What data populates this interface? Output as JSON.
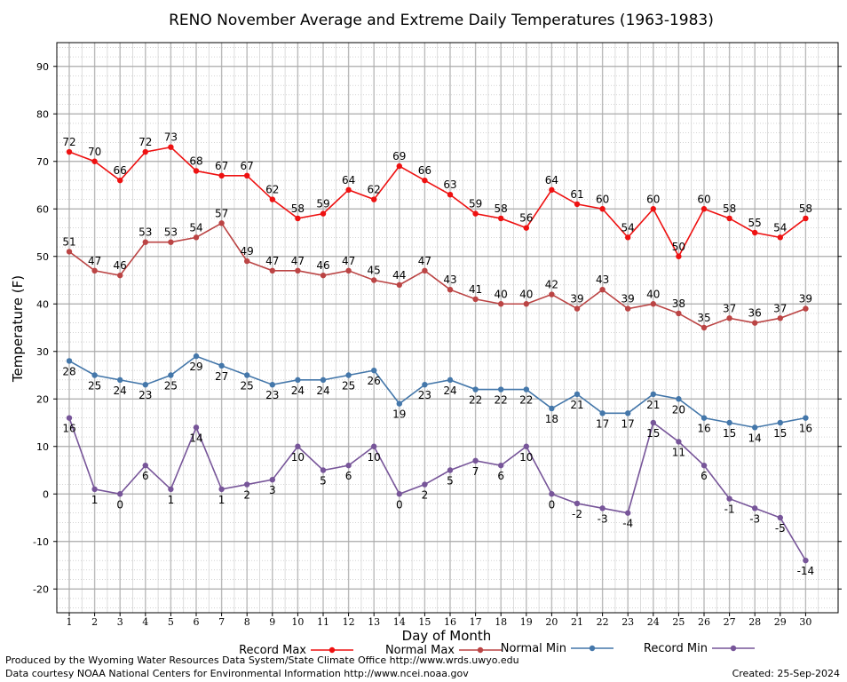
{
  "chart_data": {
    "type": "line",
    "title": "RENO November Average and Extreme Daily Temperatures (1963-1983)",
    "xlabel": "Day of Month",
    "ylabel": "Temperature (F)",
    "xlim": [
      1,
      30
    ],
    "ylim": [
      -25,
      95
    ],
    "yticks": [
      -20,
      -10,
      0,
      10,
      20,
      30,
      40,
      50,
      60,
      70,
      80,
      90
    ],
    "x": [
      1,
      2,
      3,
      4,
      5,
      6,
      7,
      8,
      9,
      10,
      11,
      12,
      13,
      14,
      15,
      16,
      17,
      18,
      19,
      20,
      21,
      22,
      23,
      24,
      25,
      26,
      27,
      28,
      29,
      30
    ],
    "grid": true,
    "legend_position": "bottom",
    "series": [
      {
        "name": "Record Max",
        "color": "#ee1111",
        "label_position": "above",
        "values": [
          72,
          70,
          66,
          72,
          73,
          68,
          67,
          67,
          62,
          58,
          59,
          64,
          62,
          69,
          66,
          63,
          59,
          58,
          56,
          64,
          61,
          60,
          54,
          60,
          50,
          60,
          58,
          55,
          54,
          58
        ]
      },
      {
        "name": "Normal Max",
        "color": "#bb4444",
        "label_position": "above",
        "values": [
          51,
          47,
          46,
          53,
          53,
          54,
          57,
          49,
          47,
          47,
          46,
          47,
          45,
          44,
          47,
          43,
          41,
          40,
          40,
          42,
          39,
          43,
          39,
          40,
          38,
          35,
          37,
          36,
          37,
          39
        ]
      },
      {
        "name": "Normal Min",
        "color": "#4477aa",
        "label_position": "below",
        "values": [
          28,
          25,
          24,
          23,
          25,
          29,
          27,
          25,
          23,
          24,
          24,
          25,
          26,
          19,
          23,
          24,
          22,
          22,
          22,
          18,
          21,
          17,
          17,
          21,
          20,
          16,
          15,
          14,
          15,
          16
        ]
      },
      {
        "name": "Record Min",
        "color": "#775599",
        "label_position": "below",
        "values": [
          16,
          1,
          0,
          6,
          1,
          14,
          1,
          2,
          3,
          10,
          5,
          6,
          10,
          0,
          2,
          5,
          7,
          6,
          10,
          0,
          -2,
          -3,
          -4,
          15,
          11,
          6,
          -1,
          -3,
          -5,
          -14
        ]
      }
    ]
  },
  "footer": {
    "produced_by": "Produced by the Wyoming Water Resources Data System/State Climate Office http://www.wrds.uwyo.edu",
    "courtesy": "Data courtesy NOAA National Centers for Environmental Information http://www.ncei.noaa.gov",
    "created": "Created:  25-Sep-2024"
  }
}
